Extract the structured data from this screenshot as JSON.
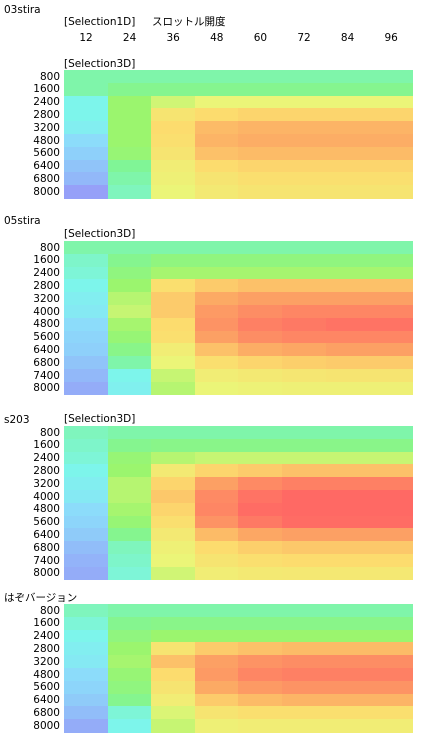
{
  "header": {
    "selection1d": "[Selection1D]",
    "axis_title": "スロットル開度",
    "columns": [
      "12",
      "24",
      "36",
      "48",
      "60",
      "72",
      "84",
      "96"
    ]
  },
  "maps": [
    {
      "name": "03stira",
      "tag": "[Selection3D]",
      "rows": [
        "800",
        "1600",
        "2400",
        "2800",
        "3200",
        "4800",
        "5600",
        "6400",
        "6800",
        "8000"
      ],
      "heat": [
        [
          0.15,
          0.15,
          0.15,
          0.15,
          0.15,
          0.15,
          0.15,
          0.15
        ],
        [
          0.15,
          0.2,
          0.2,
          0.2,
          0.2,
          0.2,
          0.2,
          0.2
        ],
        [
          0.05,
          0.3,
          0.4,
          0.45,
          0.45,
          0.45,
          0.45,
          0.45
        ],
        [
          0.05,
          0.3,
          0.55,
          0.6,
          0.62,
          0.62,
          0.62,
          0.62
        ],
        [
          0.02,
          0.3,
          0.6,
          0.7,
          0.72,
          0.72,
          0.72,
          0.72
        ],
        [
          -0.05,
          0.3,
          0.58,
          0.72,
          0.74,
          0.74,
          0.74,
          0.74
        ],
        [
          -0.1,
          0.28,
          0.55,
          0.68,
          0.7,
          0.7,
          0.7,
          0.7
        ],
        [
          -0.15,
          0.18,
          0.5,
          0.6,
          0.62,
          0.62,
          0.62,
          0.62
        ],
        [
          -0.2,
          0.15,
          0.48,
          0.55,
          0.58,
          0.58,
          0.58,
          0.58
        ],
        [
          -0.3,
          0.12,
          0.45,
          0.52,
          0.55,
          0.55,
          0.55,
          0.55
        ]
      ]
    },
    {
      "name": "05stira",
      "tag": "[Selection3D]",
      "rows": [
        "800",
        "1600",
        "2400",
        "2800",
        "3200",
        "4000",
        "4800",
        "5600",
        "6400",
        "6800",
        "7400",
        "8000"
      ],
      "heat": [
        [
          0.15,
          0.15,
          0.15,
          0.15,
          0.15,
          0.15,
          0.15,
          0.15
        ],
        [
          0.1,
          0.2,
          0.25,
          0.25,
          0.25,
          0.25,
          0.25,
          0.25
        ],
        [
          0.08,
          0.25,
          0.32,
          0.32,
          0.32,
          0.32,
          0.32,
          0.32
        ],
        [
          0.05,
          0.3,
          0.58,
          0.65,
          0.68,
          0.68,
          0.68,
          0.68
        ],
        [
          0.02,
          0.35,
          0.65,
          0.75,
          0.78,
          0.78,
          0.78,
          0.78
        ],
        [
          0.0,
          0.38,
          0.65,
          0.8,
          0.84,
          0.86,
          0.86,
          0.86
        ],
        [
          -0.05,
          0.32,
          0.6,
          0.82,
          0.88,
          0.9,
          0.92,
          0.92
        ],
        [
          -0.08,
          0.28,
          0.58,
          0.78,
          0.84,
          0.86,
          0.86,
          0.86
        ],
        [
          -0.1,
          0.22,
          0.5,
          0.68,
          0.74,
          0.76,
          0.78,
          0.78
        ],
        [
          -0.15,
          0.15,
          0.45,
          0.58,
          0.62,
          0.64,
          0.65,
          0.65
        ],
        [
          -0.2,
          0.05,
          0.38,
          0.5,
          0.52,
          0.54,
          0.55,
          0.55
        ],
        [
          -0.25,
          0.03,
          0.35,
          0.45,
          0.47,
          0.48,
          0.48,
          0.48
        ]
      ]
    },
    {
      "name": "s203",
      "tag": "[Selection3D]",
      "rows": [
        "800",
        "1600",
        "2400",
        "2800",
        "3200",
        "4000",
        "4800",
        "5600",
        "6400",
        "6800",
        "7400",
        "8000"
      ],
      "heat": [
        [
          0.12,
          0.15,
          0.15,
          0.15,
          0.15,
          0.15,
          0.15,
          0.15
        ],
        [
          0.1,
          0.2,
          0.22,
          0.22,
          0.22,
          0.22,
          0.22,
          0.22
        ],
        [
          0.08,
          0.28,
          0.35,
          0.38,
          0.38,
          0.38,
          0.38,
          0.38
        ],
        [
          0.05,
          0.3,
          0.52,
          0.62,
          0.65,
          0.68,
          0.68,
          0.68
        ],
        [
          0.02,
          0.35,
          0.62,
          0.78,
          0.85,
          0.88,
          0.88,
          0.88
        ],
        [
          0.0,
          0.35,
          0.66,
          0.85,
          0.92,
          0.95,
          0.95,
          0.95
        ],
        [
          -0.05,
          0.32,
          0.62,
          0.86,
          0.94,
          0.96,
          0.96,
          0.96
        ],
        [
          -0.08,
          0.28,
          0.58,
          0.82,
          0.9,
          0.94,
          0.94,
          0.94
        ],
        [
          -0.12,
          0.2,
          0.52,
          0.7,
          0.76,
          0.78,
          0.78,
          0.78
        ],
        [
          -0.18,
          0.12,
          0.48,
          0.6,
          0.64,
          0.66,
          0.66,
          0.66
        ],
        [
          -0.22,
          0.1,
          0.45,
          0.55,
          0.58,
          0.6,
          0.6,
          0.6
        ],
        [
          -0.25,
          0.08,
          0.4,
          0.5,
          0.52,
          0.53,
          0.53,
          0.53
        ]
      ]
    },
    {
      "name": "はぞバージョン",
      "tag": "",
      "rows": [
        "800",
        "1600",
        "2400",
        "2800",
        "3200",
        "4800",
        "5600",
        "6400",
        "6800",
        "8000"
      ],
      "heat": [
        [
          0.12,
          0.15,
          0.15,
          0.15,
          0.15,
          0.15,
          0.15,
          0.15
        ],
        [
          0.08,
          0.2,
          0.22,
          0.22,
          0.22,
          0.22,
          0.22,
          0.22
        ],
        [
          0.05,
          0.25,
          0.3,
          0.3,
          0.3,
          0.3,
          0.3,
          0.3
        ],
        [
          0.02,
          0.3,
          0.55,
          0.65,
          0.68,
          0.7,
          0.7,
          0.7
        ],
        [
          0.0,
          0.32,
          0.68,
          0.78,
          0.82,
          0.84,
          0.84,
          0.84
        ],
        [
          -0.05,
          0.28,
          0.6,
          0.8,
          0.86,
          0.88,
          0.88,
          0.88
        ],
        [
          -0.08,
          0.25,
          0.55,
          0.75,
          0.8,
          0.82,
          0.82,
          0.82
        ],
        [
          -0.12,
          0.2,
          0.5,
          0.65,
          0.7,
          0.72,
          0.72,
          0.72
        ],
        [
          -0.18,
          0.08,
          0.42,
          0.55,
          0.58,
          0.58,
          0.58,
          0.58
        ],
        [
          -0.25,
          0.05,
          0.38,
          0.48,
          0.5,
          0.5,
          0.5,
          0.5
        ]
      ]
    }
  ]
}
